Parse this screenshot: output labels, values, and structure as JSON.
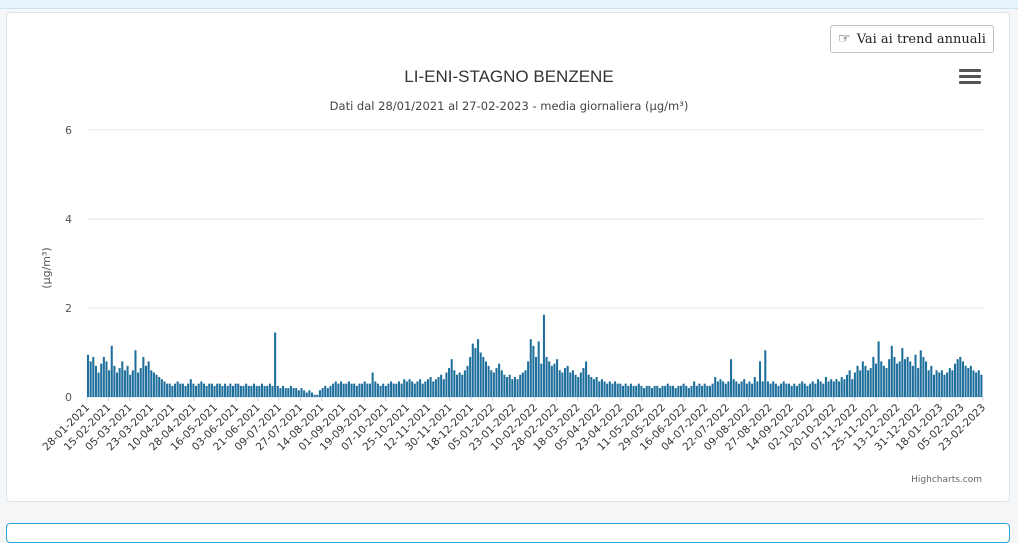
{
  "button": {
    "label": "Vai ai trend annuali",
    "icon": "hand-pointing-icon"
  },
  "menu": {
    "icon": "hamburger-menu-icon"
  },
  "credits": "Highcharts.com",
  "chart_data": {
    "type": "bar",
    "title": "LI-ENI-STAGNO BENZENE",
    "subtitle": "Dati dal 28/01/2021 al 27-02-2023 - media giornaliera (µg/m³)",
    "ylabel": "(µg/m³)",
    "xlabel": "",
    "ylim": [
      0,
      6
    ],
    "yticks": [
      0,
      2,
      4,
      6
    ],
    "grid": true,
    "color": "#1f6f9c",
    "x_tick_labels": [
      "28-01-2021",
      "15-02-2021",
      "05-03-2021",
      "23-03-2021",
      "10-04-2021",
      "28-04-2021",
      "16-05-2021",
      "03-06-2021",
      "21-06-2021",
      "09-07-2021",
      "27-07-2021",
      "14-08-2021",
      "01-09-2021",
      "19-09-2021",
      "07-10-2021",
      "25-10-2021",
      "12-11-2021",
      "30-11-2021",
      "18-12-2021",
      "05-01-2022",
      "23-01-2022",
      "10-02-2022",
      "28-02-2022",
      "18-03-2022",
      "05-04-2022",
      "23-04-2022",
      "11-05-2022",
      "29-05-2022",
      "16-06-2022",
      "04-07-2022",
      "22-07-2022",
      "09-08-2022",
      "27-08-2022",
      "14-09-2022",
      "02-10-2022",
      "20-10-2022",
      "07-11-2022",
      "25-11-2022",
      "13-12-2022",
      "31-12-2022",
      "18-01-2023",
      "05-02-2023",
      "23-02-2023"
    ],
    "series": [
      {
        "values": [
          0.95,
          0.8,
          0.9,
          0.7,
          0.55,
          0.75,
          0.9,
          0.8,
          0.6,
          1.15,
          0.7,
          0.55,
          0.65,
          0.8,
          0.6,
          0.7,
          0.5,
          0.6,
          1.05,
          0.55,
          0.65,
          0.9,
          0.7,
          0.8,
          0.6,
          0.55,
          0.5,
          0.45,
          0.4,
          0.35,
          0.3,
          0.3,
          0.25,
          0.3,
          0.35,
          0.3,
          0.3,
          0.25,
          0.3,
          0.4,
          0.3,
          0.25,
          0.3,
          0.35,
          0.3,
          0.25,
          0.3,
          0.3,
          0.25,
          0.3,
          0.3,
          0.25,
          0.3,
          0.25,
          0.3,
          0.25,
          0.3,
          0.3,
          0.25,
          0.25,
          0.3,
          0.25,
          0.25,
          0.3,
          0.25,
          0.25,
          0.3,
          0.25,
          0.25,
          0.3,
          0.25,
          1.45,
          0.25,
          0.2,
          0.25,
          0.2,
          0.2,
          0.25,
          0.2,
          0.2,
          0.15,
          0.2,
          0.15,
          0.1,
          0.15,
          0.1,
          0.05,
          0.05,
          0.15,
          0.2,
          0.25,
          0.2,
          0.25,
          0.3,
          0.35,
          0.3,
          0.35,
          0.3,
          0.3,
          0.35,
          0.3,
          0.3,
          0.25,
          0.3,
          0.3,
          0.35,
          0.3,
          0.3,
          0.55,
          0.35,
          0.3,
          0.25,
          0.3,
          0.25,
          0.3,
          0.35,
          0.3,
          0.3,
          0.35,
          0.3,
          0.4,
          0.35,
          0.4,
          0.35,
          0.3,
          0.35,
          0.4,
          0.3,
          0.35,
          0.4,
          0.45,
          0.35,
          0.4,
          0.45,
          0.5,
          0.4,
          0.55,
          0.65,
          0.85,
          0.6,
          0.5,
          0.55,
          0.5,
          0.6,
          0.7,
          0.9,
          1.2,
          1.1,
          1.3,
          1.0,
          0.9,
          0.8,
          0.7,
          0.6,
          0.55,
          0.65,
          0.75,
          0.6,
          0.5,
          0.45,
          0.5,
          0.4,
          0.45,
          0.4,
          0.5,
          0.55,
          0.6,
          0.8,
          1.3,
          1.15,
          0.9,
          1.25,
          0.75,
          1.85,
          0.9,
          0.8,
          0.7,
          0.75,
          0.85,
          0.6,
          0.55,
          0.65,
          0.7,
          0.55,
          0.6,
          0.5,
          0.45,
          0.55,
          0.65,
          0.8,
          0.5,
          0.45,
          0.4,
          0.45,
          0.35,
          0.4,
          0.35,
          0.3,
          0.35,
          0.3,
          0.35,
          0.3,
          0.3,
          0.25,
          0.3,
          0.25,
          0.3,
          0.25,
          0.25,
          0.3,
          0.25,
          0.2,
          0.25,
          0.25,
          0.2,
          0.25,
          0.25,
          0.2,
          0.25,
          0.25,
          0.3,
          0.25,
          0.25,
          0.2,
          0.25,
          0.25,
          0.3,
          0.25,
          0.2,
          0.25,
          0.35,
          0.25,
          0.3,
          0.25,
          0.3,
          0.25,
          0.25,
          0.3,
          0.45,
          0.35,
          0.4,
          0.35,
          0.3,
          0.35,
          0.85,
          0.4,
          0.35,
          0.3,
          0.35,
          0.4,
          0.3,
          0.35,
          0.3,
          0.45,
          0.35,
          0.8,
          0.35,
          1.05,
          0.35,
          0.3,
          0.35,
          0.3,
          0.25,
          0.3,
          0.35,
          0.3,
          0.3,
          0.25,
          0.3,
          0.25,
          0.3,
          0.35,
          0.3,
          0.25,
          0.3,
          0.35,
          0.3,
          0.4,
          0.35,
          0.3,
          0.45,
          0.35,
          0.4,
          0.35,
          0.4,
          0.35,
          0.45,
          0.4,
          0.5,
          0.6,
          0.4,
          0.55,
          0.7,
          0.6,
          0.8,
          0.7,
          0.6,
          0.65,
          0.9,
          0.75,
          1.25,
          0.8,
          0.7,
          0.65,
          0.85,
          1.15,
          0.9,
          0.75,
          0.8,
          1.1,
          0.85,
          0.9,
          0.8,
          0.7,
          0.95,
          0.65,
          1.05,
          0.9,
          0.8,
          0.6,
          0.7,
          0.5,
          0.6,
          0.55,
          0.6,
          0.5,
          0.55,
          0.65,
          0.6,
          0.75,
          0.85,
          0.9,
          0.8,
          0.7,
          0.65,
          0.7,
          0.6,
          0.55,
          0.6,
          0.5
        ]
      }
    ]
  }
}
